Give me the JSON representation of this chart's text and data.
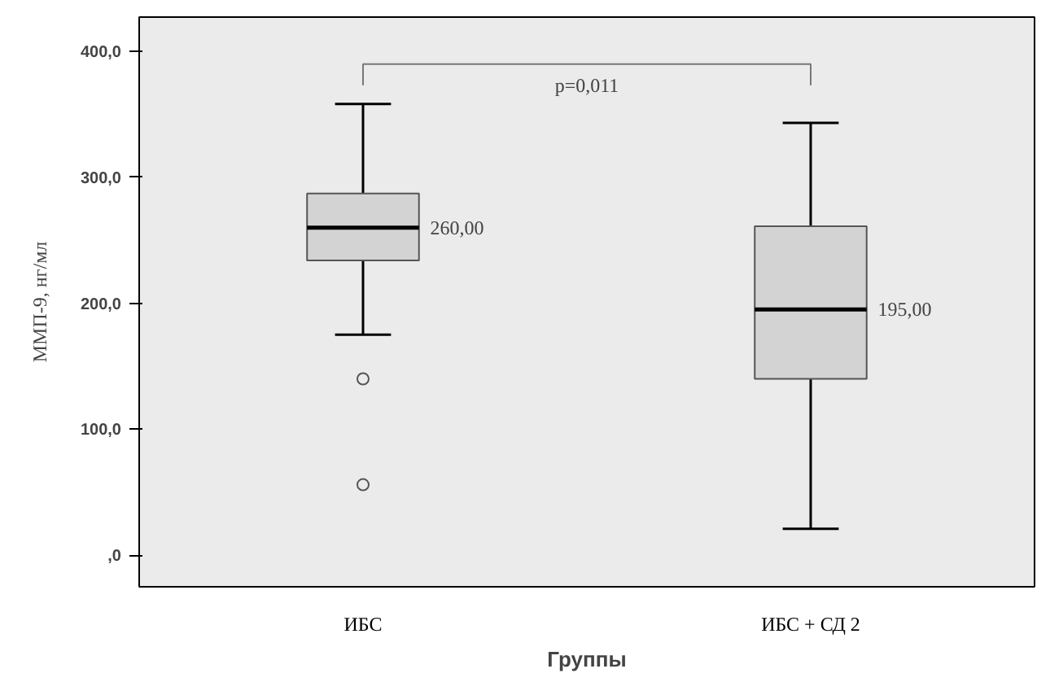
{
  "chart_data": {
    "type": "box",
    "categories": [
      "ИБС",
      "ИБС + СД 2"
    ],
    "boxes": [
      {
        "low": 175,
        "q1": 234,
        "median": 260,
        "q3": 287,
        "high": 358,
        "outliers": [
          140,
          56
        ]
      },
      {
        "low": 21,
        "q1": 140,
        "median": 195,
        "q3": 261,
        "high": 343
      }
    ],
    "value_labels": [
      "260,00",
      "195,00"
    ],
    "xlabel": "Группы",
    "ylabel": "ММП-9, нг/мл",
    "annotations": [
      "p=0,011"
    ],
    "ylim": [
      -25,
      427
    ],
    "yticks": [
      {
        "value": 0,
        "label": ",0"
      },
      {
        "value": 100,
        "label": "100,0"
      },
      {
        "value": 200,
        "label": "200,0"
      },
      {
        "value": 300,
        "label": "300,0"
      },
      {
        "value": 400,
        "label": "400,0"
      }
    ],
    "grid": false
  }
}
